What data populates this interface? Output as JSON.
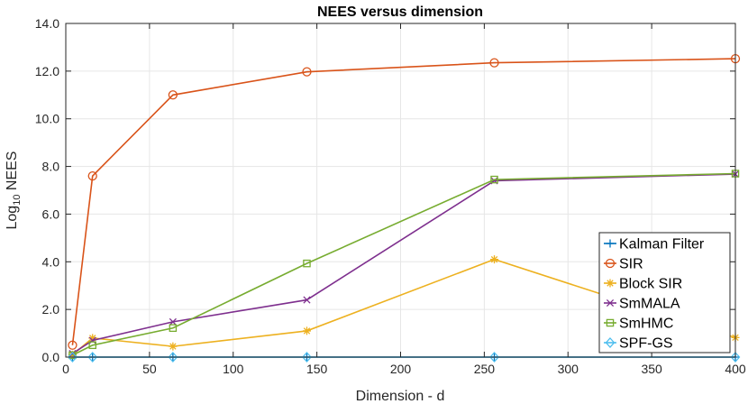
{
  "chart_data": {
    "type": "line",
    "title": "NEES versus dimension",
    "xlabel": "Dimension - d",
    "ylabel_main": "Log",
    "ylabel_sub": "10",
    "ylabel_tail": " NEES",
    "xlim": [
      0,
      400
    ],
    "ylim": [
      0,
      14
    ],
    "xticks": [
      0,
      50,
      100,
      150,
      200,
      250,
      300,
      350,
      400
    ],
    "yticks": [
      0,
      2,
      4,
      6,
      8,
      10,
      12,
      14
    ],
    "ytick_labels": [
      "0.0",
      "2.0",
      "4.0",
      "6.0",
      "8.0",
      "10.0",
      "12.0",
      "14.0"
    ],
    "grid": true,
    "legend_position": "lower-right",
    "x": [
      4,
      16,
      64,
      144,
      256,
      400
    ],
    "series": [
      {
        "name": "Kalman Filter",
        "color": "#0072BD",
        "marker": "plus",
        "values": [
          0.0,
          0.0,
          0.0,
          0.0,
          0.0,
          0.0
        ]
      },
      {
        "name": "SIR",
        "color": "#D95319",
        "marker": "circle",
        "values": [
          0.5,
          7.6,
          11.0,
          11.97,
          12.35,
          12.52
        ]
      },
      {
        "name": "Block SIR",
        "color": "#EDB120",
        "marker": "star",
        "values": [
          0.1,
          0.8,
          0.45,
          1.1,
          4.1,
          0.82
        ]
      },
      {
        "name": "SmMALA",
        "color": "#7E2F8E",
        "marker": "x",
        "values": [
          0.15,
          0.7,
          1.48,
          2.4,
          7.4,
          7.68
        ]
      },
      {
        "name": "SmHMC",
        "color": "#77AC30",
        "marker": "square",
        "values": [
          0.08,
          0.5,
          1.22,
          3.93,
          7.45,
          7.7
        ]
      },
      {
        "name": "SPF-GS",
        "color": "#4DBEEE",
        "marker": "diamond",
        "values": [
          0.0,
          0.0,
          0.0,
          0.0,
          0.0,
          0.0
        ]
      }
    ]
  }
}
